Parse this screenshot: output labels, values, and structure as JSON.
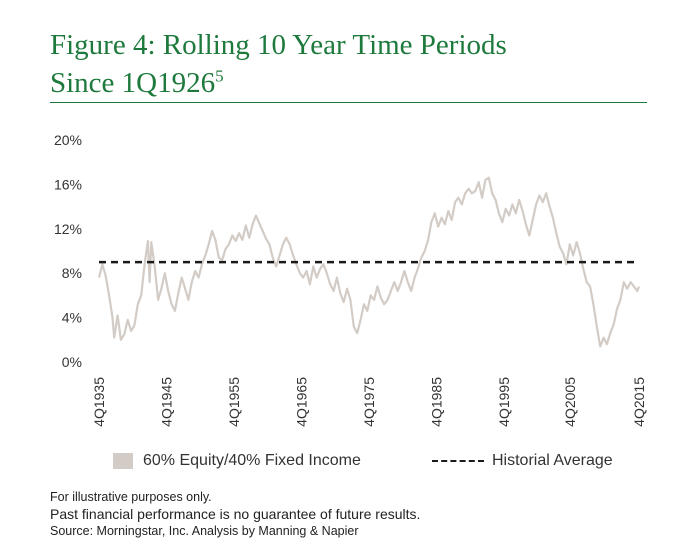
{
  "header": {
    "title_line1": "Figure 4: Rolling 10 Year Time Periods",
    "title_line2": "Since 1Q1926",
    "title_superscript": "5"
  },
  "legend": {
    "series_label": "60% Equity/40% Fixed Income",
    "average_label": "Historial Average"
  },
  "footnotes": {
    "illustrative": "For illustrative purposes only.",
    "disclaimer": "Past financial performance is no guarantee of future results.",
    "source": "Source: Morningstar, Inc. Analysis by Manning & Napier"
  },
  "colors": {
    "title": "#1e7a3c",
    "series": "#d3ccc6",
    "average_line": "#1a1a1a",
    "axis_text": "#333333"
  },
  "chart_data": {
    "type": "line",
    "title": "Figure 4: Rolling 10 Year Time Periods Since 1Q1926",
    "xlabel": "",
    "ylabel": "",
    "ylim": [
      0,
      20
    ],
    "xlim": [
      1935.75,
      2015.75
    ],
    "grid": false,
    "legend_position": "bottom",
    "y_ticks": [
      0,
      4,
      8,
      12,
      16,
      20
    ],
    "y_tick_labels": [
      "0%",
      "4%",
      "8%",
      "12%",
      "16%",
      "20%"
    ],
    "x_ticks": [
      1935.75,
      1945.75,
      1955.75,
      1965.75,
      1975.75,
      1985.75,
      1995.75,
      2005.5,
      2015.75
    ],
    "x_tick_labels": [
      "4Q1935",
      "4Q1945",
      "4Q1955",
      "4Q1965",
      "4Q1975",
      "4Q1985",
      "4Q1995",
      "4Q2005",
      "4Q2015"
    ],
    "series": [
      {
        "name": "60% Equity/40% Fixed Income",
        "style": "solid",
        "points": [
          [
            1935.75,
            7.6
          ],
          [
            1936.25,
            8.8
          ],
          [
            1936.75,
            7.7
          ],
          [
            1937.25,
            6.0
          ],
          [
            1937.75,
            4.0
          ],
          [
            1938.0,
            2.2
          ],
          [
            1938.5,
            4.2
          ],
          [
            1939.0,
            2.0
          ],
          [
            1939.5,
            2.5
          ],
          [
            1940.0,
            3.8
          ],
          [
            1940.5,
            2.8
          ],
          [
            1941.0,
            3.3
          ],
          [
            1941.5,
            5.2
          ],
          [
            1942.0,
            6.0
          ],
          [
            1942.5,
            8.8
          ],
          [
            1943.0,
            10.9
          ],
          [
            1943.25,
            7.2
          ],
          [
            1943.5,
            10.8
          ],
          [
            1944.0,
            8.6
          ],
          [
            1944.5,
            5.6
          ],
          [
            1945.0,
            6.6
          ],
          [
            1945.5,
            8.0
          ],
          [
            1946.0,
            6.4
          ],
          [
            1946.5,
            5.2
          ],
          [
            1947.0,
            4.6
          ],
          [
            1947.5,
            6.2
          ],
          [
            1948.0,
            7.6
          ],
          [
            1948.5,
            6.6
          ],
          [
            1949.0,
            5.6
          ],
          [
            1949.5,
            7.2
          ],
          [
            1950.0,
            8.2
          ],
          [
            1950.5,
            7.6
          ],
          [
            1951.0,
            8.8
          ],
          [
            1951.5,
            9.6
          ],
          [
            1952.0,
            10.6
          ],
          [
            1952.5,
            11.8
          ],
          [
            1953.0,
            11.0
          ],
          [
            1953.5,
            9.4
          ],
          [
            1954.0,
            9.2
          ],
          [
            1954.5,
            10.2
          ],
          [
            1955.0,
            10.6
          ],
          [
            1955.5,
            11.4
          ],
          [
            1956.0,
            10.9
          ],
          [
            1956.5,
            11.6
          ],
          [
            1957.0,
            11.0
          ],
          [
            1957.5,
            12.3
          ],
          [
            1958.0,
            11.2
          ],
          [
            1958.5,
            12.4
          ],
          [
            1959.0,
            13.2
          ],
          [
            1959.5,
            12.5
          ],
          [
            1960.0,
            11.8
          ],
          [
            1960.5,
            11.1
          ],
          [
            1961.0,
            10.6
          ],
          [
            1961.5,
            9.4
          ],
          [
            1962.0,
            8.6
          ],
          [
            1962.5,
            9.6
          ],
          [
            1963.0,
            10.6
          ],
          [
            1963.5,
            11.2
          ],
          [
            1964.0,
            10.6
          ],
          [
            1964.5,
            9.6
          ],
          [
            1965.0,
            8.8
          ],
          [
            1965.5,
            8.0
          ],
          [
            1966.0,
            7.6
          ],
          [
            1966.5,
            8.2
          ],
          [
            1967.0,
            7.0
          ],
          [
            1967.5,
            8.6
          ],
          [
            1968.0,
            7.6
          ],
          [
            1968.5,
            8.4
          ],
          [
            1969.0,
            8.8
          ],
          [
            1969.5,
            8.0
          ],
          [
            1970.0,
            7.0
          ],
          [
            1970.5,
            6.4
          ],
          [
            1971.0,
            7.6
          ],
          [
            1971.5,
            6.2
          ],
          [
            1972.0,
            5.4
          ],
          [
            1972.5,
            6.6
          ],
          [
            1973.0,
            5.6
          ],
          [
            1973.5,
            3.2
          ],
          [
            1974.0,
            2.6
          ],
          [
            1974.5,
            3.8
          ],
          [
            1975.0,
            5.2
          ],
          [
            1975.5,
            4.6
          ],
          [
            1976.0,
            6.0
          ],
          [
            1976.5,
            5.6
          ],
          [
            1977.0,
            6.8
          ],
          [
            1977.5,
            5.8
          ],
          [
            1978.0,
            5.2
          ],
          [
            1978.5,
            5.6
          ],
          [
            1979.0,
            6.4
          ],
          [
            1979.5,
            7.2
          ],
          [
            1980.0,
            6.4
          ],
          [
            1980.5,
            7.2
          ],
          [
            1981.0,
            8.2
          ],
          [
            1981.5,
            7.2
          ],
          [
            1982.0,
            6.4
          ],
          [
            1982.5,
            7.6
          ],
          [
            1983.0,
            8.4
          ],
          [
            1983.5,
            9.4
          ],
          [
            1984.0,
            10.0
          ],
          [
            1984.5,
            11.0
          ],
          [
            1985.0,
            12.6
          ],
          [
            1985.5,
            13.4
          ],
          [
            1986.0,
            12.2
          ],
          [
            1986.5,
            13.0
          ],
          [
            1987.0,
            12.4
          ],
          [
            1987.5,
            13.6
          ],
          [
            1988.0,
            12.8
          ],
          [
            1988.5,
            14.4
          ],
          [
            1989.0,
            14.8
          ],
          [
            1989.5,
            14.2
          ],
          [
            1990.0,
            15.2
          ],
          [
            1990.5,
            15.6
          ],
          [
            1991.0,
            15.2
          ],
          [
            1991.5,
            15.4
          ],
          [
            1992.0,
            16.2
          ],
          [
            1992.5,
            14.8
          ],
          [
            1993.0,
            16.4
          ],
          [
            1993.5,
            16.6
          ],
          [
            1994.0,
            15.2
          ],
          [
            1994.5,
            14.6
          ],
          [
            1995.0,
            13.4
          ],
          [
            1995.5,
            12.6
          ],
          [
            1996.0,
            13.8
          ],
          [
            1996.5,
            13.2
          ],
          [
            1997.0,
            14.2
          ],
          [
            1997.5,
            13.4
          ],
          [
            1998.0,
            14.6
          ],
          [
            1998.5,
            13.6
          ],
          [
            1999.0,
            12.4
          ],
          [
            1999.5,
            11.4
          ],
          [
            2000.0,
            12.8
          ],
          [
            2000.5,
            14.2
          ],
          [
            2001.0,
            15.0
          ],
          [
            2001.5,
            14.4
          ],
          [
            2002.0,
            15.2
          ],
          [
            2002.5,
            14.0
          ],
          [
            2003.0,
            13.0
          ],
          [
            2003.5,
            11.6
          ],
          [
            2004.0,
            10.4
          ],
          [
            2004.5,
            9.8
          ],
          [
            2005.0,
            8.8
          ],
          [
            2005.5,
            10.6
          ],
          [
            2006.0,
            9.6
          ],
          [
            2006.5,
            10.8
          ],
          [
            2007.0,
            9.8
          ],
          [
            2007.5,
            8.4
          ],
          [
            2008.0,
            7.2
          ],
          [
            2008.5,
            6.8
          ],
          [
            2009.0,
            5.2
          ],
          [
            2009.5,
            3.2
          ],
          [
            2010.0,
            1.4
          ],
          [
            2010.5,
            2.2
          ],
          [
            2011.0,
            1.6
          ],
          [
            2011.5,
            2.6
          ],
          [
            2012.0,
            3.4
          ],
          [
            2012.5,
            4.8
          ],
          [
            2013.0,
            5.6
          ],
          [
            2013.5,
            7.2
          ],
          [
            2014.0,
            6.6
          ],
          [
            2014.5,
            7.2
          ],
          [
            2015.0,
            6.8
          ],
          [
            2015.5,
            6.4
          ],
          [
            2015.75,
            6.8
          ]
        ]
      },
      {
        "name": "Historial Average",
        "style": "dashed",
        "points": [
          [
            1935.75,
            9.0
          ],
          [
            2015.75,
            9.0
          ]
        ]
      }
    ]
  }
}
